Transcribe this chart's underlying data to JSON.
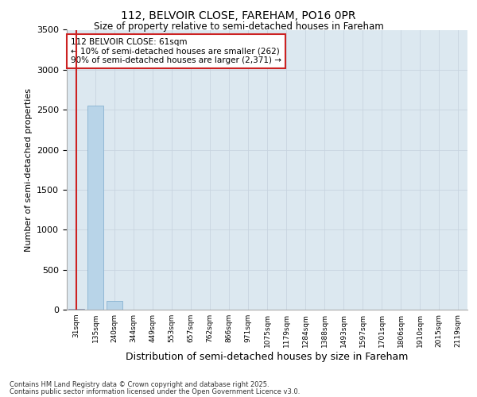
{
  "title1": "112, BELVOIR CLOSE, FAREHAM, PO16 0PR",
  "title2": "Size of property relative to semi-detached houses in Fareham",
  "xlabel": "Distribution of semi-detached houses by size in Fareham",
  "ylabel": "Number of semi-detached properties",
  "categories": [
    "31sqm",
    "135sqm",
    "240sqm",
    "344sqm",
    "449sqm",
    "553sqm",
    "657sqm",
    "762sqm",
    "866sqm",
    "971sqm",
    "1075sqm",
    "1179sqm",
    "1284sqm",
    "1388sqm",
    "1493sqm",
    "1597sqm",
    "1701sqm",
    "1806sqm",
    "1910sqm",
    "2015sqm",
    "2119sqm"
  ],
  "values": [
    5,
    2550,
    105,
    0,
    0,
    0,
    0,
    0,
    0,
    0,
    0,
    0,
    0,
    0,
    0,
    0,
    0,
    0,
    0,
    0,
    0
  ],
  "bar_colors": [
    "#cc2222",
    "#b8d4e8",
    "#b8d4e8",
    "#b8d4e8",
    "#b8d4e8",
    "#b8d4e8",
    "#b8d4e8",
    "#b8d4e8",
    "#b8d4e8",
    "#b8d4e8",
    "#b8d4e8",
    "#b8d4e8",
    "#b8d4e8",
    "#b8d4e8",
    "#b8d4e8",
    "#b8d4e8",
    "#b8d4e8",
    "#b8d4e8",
    "#b8d4e8",
    "#b8d4e8",
    "#b8d4e8"
  ],
  "ylim": [
    0,
    3500
  ],
  "yticks": [
    0,
    500,
    1000,
    1500,
    2000,
    2500,
    3000,
    3500
  ],
  "annotation_text": "112 BELVOIR CLOSE: 61sqm\n← 10% of semi-detached houses are smaller (262)\n90% of semi-detached houses are larger (2,371) →",
  "annotation_box_edgecolor": "#cc2222",
  "annotation_box_facecolor": "#ffffff",
  "grid_color": "#c8d4e0",
  "bg_color": "#dce8f0",
  "bar_edge_color": "#7aaacc",
  "footnote1": "Contains HM Land Registry data © Crown copyright and database right 2025.",
  "footnote2": "Contains public sector information licensed under the Open Government Licence v3.0."
}
